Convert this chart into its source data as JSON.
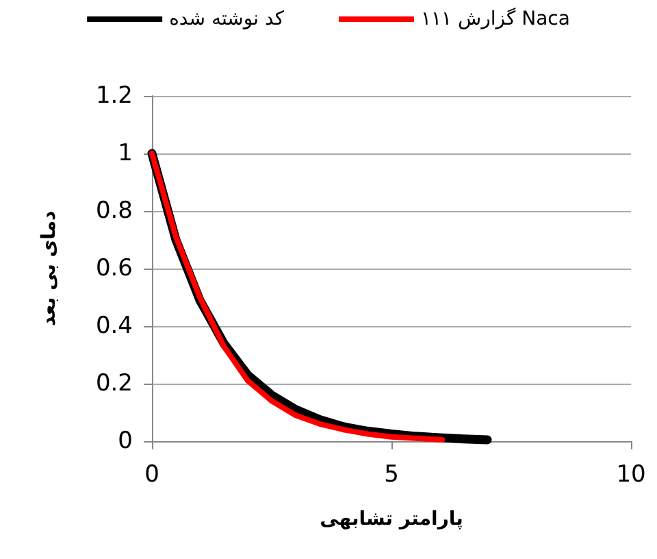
{
  "chart_data": {
    "type": "line",
    "xlabel": "پارامتر تشابهی",
    "ylabel": "دمای بی بعد",
    "xlim": [
      0,
      10
    ],
    "xticks": [
      0,
      5,
      10
    ],
    "ylim": [
      0,
      1.2
    ],
    "yticks": [
      0,
      0.2,
      0.4,
      0.6,
      0.8,
      1,
      1.2
    ],
    "grid": "y",
    "legend": "top",
    "marker": "none",
    "line_style": "solid",
    "series": [
      {
        "name": "کد نوشته شده",
        "color": "#000000",
        "x": [
          0,
          0.5,
          1,
          1.5,
          2,
          2.5,
          3,
          3.5,
          4,
          4.5,
          5,
          5.5,
          6,
          6.5,
          7
        ],
        "values": [
          1,
          0.7,
          0.49,
          0.34,
          0.23,
          0.16,
          0.11,
          0.075,
          0.05,
          0.035,
          0.025,
          0.017,
          0.012,
          0.008,
          0.005
        ]
      },
      {
        "name": "گزارش ۱۱۱ Naca",
        "color": "#ff0000",
        "x": [
          0,
          0.5,
          1,
          1.5,
          2,
          2.5,
          3,
          3.5,
          4,
          4.5,
          5,
          5.5,
          6.06
        ],
        "values": [
          1,
          0.71,
          0.5,
          0.33,
          0.21,
          0.14,
          0.09,
          0.06,
          0.04,
          0.025,
          0.015,
          0.01,
          0.005
        ]
      }
    ]
  }
}
